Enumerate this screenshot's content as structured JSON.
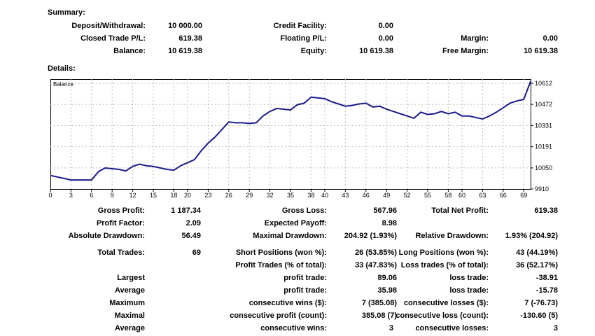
{
  "summary": {
    "title": "Summary:",
    "deposit_label": "Deposit/Withdrawal:",
    "deposit_value": "10 000.00",
    "closed_label": "Closed Trade P/L:",
    "closed_value": "619.38",
    "balance_label": "Balance:",
    "balance_value": "10 619.38",
    "credit_label": "Credit Facility:",
    "credit_value": "0.00",
    "floating_label": "Floating P/L:",
    "floating_value": "0.00",
    "equity_label": "Equity:",
    "equity_value": "10 619.38",
    "margin_label": "Margin:",
    "margin_value": "0.00",
    "free_margin_label": "Free Margin:",
    "free_margin_value": "10 619.38"
  },
  "details": {
    "title": "Details:",
    "gross_profit_label": "Gross Profit:",
    "gross_profit_value": "1 187.34",
    "gross_loss_label": "Gross Loss:",
    "gross_loss_value": "567.96",
    "total_net_label": "Total Net Profit:",
    "total_net_value": "619.38",
    "profit_factor_label": "Profit Factor:",
    "profit_factor_value": "2.09",
    "expected_payoff_label": "Expected Payoff:",
    "expected_payoff_value": "8.98",
    "abs_dd_label": "Absolute Drawdown:",
    "abs_dd_value": "56.49",
    "max_dd_label": "Maximal Drawdown:",
    "max_dd_value": "204.92 (1.93%)",
    "rel_dd_label": "Relative Drawdown:",
    "rel_dd_value": "1.93% (204.92)",
    "total_trades_label": "Total Trades:",
    "total_trades_value": "69",
    "short_label": "Short Positions (won %):",
    "short_value": "26 (53.85%)",
    "long_label": "Long Positions (won %):",
    "long_value": "43 (44.19%)",
    "profit_trades_label": "Profit Trades (% of total):",
    "profit_trades_value": "33 (47.83%)",
    "loss_trades_label": "Loss trades (% of total):",
    "loss_trades_value": "36 (52.17%)",
    "largest_label": "Largest",
    "largest_profit_label": "profit trade:",
    "largest_profit_value": "89.06",
    "largest_loss_label": "loss trade:",
    "largest_loss_value": "-38.91",
    "average_label": "Average",
    "average_profit_label": "profit trade:",
    "average_profit_value": "35.98",
    "average_loss_label": "loss trade:",
    "average_loss_value": "-15.78",
    "maximum_label": "Maximum",
    "max_cons_wins_label": "consecutive wins ($):",
    "max_cons_wins_value": "7 (385.08)",
    "max_cons_losses_label": "consecutive losses ($):",
    "max_cons_losses_value": "7 (-76.73)",
    "maximal_label": "Maximal",
    "maximal_profit_label": "consecutive profit (count):",
    "maximal_profit_value": "385.08 (7)",
    "maximal_loss_label": "consecutive loss (count):",
    "maximal_loss_value": "-130.60 (5)",
    "average2_label": "Average",
    "avg_cons_wins_label": "consecutive wins:",
    "avg_cons_wins_value": "3",
    "avg_cons_losses_label": "consecutive losses:",
    "avg_cons_losses_value": "3"
  },
  "chart_data": {
    "type": "line",
    "title": "Balance",
    "line_color": "#1a1a8c",
    "grid": true,
    "xlim": [
      0,
      70
    ],
    "ylim": [
      9910,
      10640
    ],
    "x_ticks": [
      "0",
      "3",
      "6",
      "9",
      "12",
      "15",
      "18",
      "20",
      "23",
      "26",
      "29",
      "32",
      "35",
      "38",
      "40",
      "43",
      "46",
      "49",
      "52",
      "55",
      "58",
      "60",
      "63",
      "66",
      "69"
    ],
    "y_ticks": [
      "10612",
      "10472",
      "10331",
      "10191",
      "10050",
      "9910"
    ],
    "y_tick_values": [
      10612,
      10472,
      10331,
      10191,
      10050,
      9910
    ],
    "x": [
      0,
      1,
      2,
      3,
      4,
      5,
      6,
      7,
      8,
      9,
      10,
      11,
      12,
      13,
      14,
      15,
      16,
      17,
      18,
      19,
      20,
      21,
      22,
      23,
      24,
      25,
      26,
      27,
      28,
      29,
      30,
      31,
      32,
      33,
      34,
      35,
      36,
      37,
      38,
      39,
      40,
      41,
      42,
      43,
      44,
      45,
      46,
      47,
      48,
      49,
      50,
      51,
      52,
      53,
      54,
      55,
      56,
      57,
      58,
      59,
      60,
      61,
      62,
      63,
      64,
      65,
      66,
      67,
      68,
      69,
      70
    ],
    "y": [
      10000,
      9990,
      9980,
      9970,
      9970,
      9970,
      9970,
      10025,
      10050,
      10045,
      10040,
      10030,
      10060,
      10075,
      10065,
      10060,
      10050,
      10040,
      10035,
      10065,
      10085,
      10105,
      10165,
      10215,
      10255,
      10305,
      10355,
      10350,
      10350,
      10345,
      10350,
      10395,
      10425,
      10445,
      10440,
      10435,
      10470,
      10480,
      10520,
      10515,
      10510,
      10490,
      10475,
      10460,
      10465,
      10475,
      10480,
      10455,
      10460,
      10440,
      10425,
      10410,
      10395,
      10380,
      10420,
      10405,
      10410,
      10425,
      10410,
      10420,
      10395,
      10395,
      10385,
      10375,
      10395,
      10420,
      10450,
      10480,
      10495,
      10505,
      10625
    ]
  }
}
